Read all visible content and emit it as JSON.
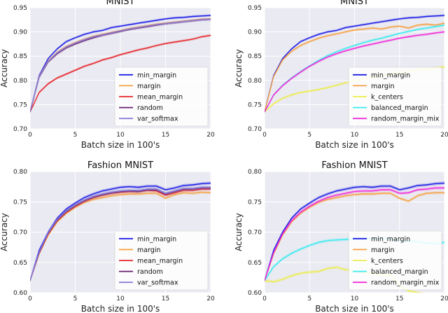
{
  "chart_data": [
    {
      "type": "line",
      "title": "MNIST",
      "xlabel": "Batch size in 100's",
      "ylabel": "Accuracy",
      "xlim": [
        0,
        20
      ],
      "ylim": [
        0.7,
        0.95
      ],
      "xticks": [
        "0",
        "5",
        "10",
        "15",
        "20"
      ],
      "yticks": [
        "0.70",
        "0.75",
        "0.80",
        "0.85",
        "0.90",
        "0.95"
      ],
      "grid": true,
      "legend_position": "bottom-right",
      "x": [
        0,
        1,
        2,
        3,
        4,
        5,
        6,
        7,
        8,
        9,
        10,
        11,
        12,
        13,
        14,
        15,
        16,
        17,
        18,
        19,
        20
      ],
      "series": [
        {
          "name": "min_margin",
          "color": "#1f1fe6",
          "values": [
            0.735,
            0.81,
            0.845,
            0.865,
            0.88,
            0.888,
            0.895,
            0.9,
            0.903,
            0.909,
            0.912,
            0.915,
            0.918,
            0.921,
            0.924,
            0.927,
            0.929,
            0.93,
            0.932,
            0.933,
            0.934
          ]
        },
        {
          "name": "margin",
          "color": "#f5a142",
          "values": [
            0.735,
            0.808,
            0.84,
            0.858,
            0.87,
            0.878,
            0.885,
            0.891,
            0.895,
            0.899,
            0.903,
            0.907,
            0.91,
            0.913,
            0.916,
            0.918,
            0.92,
            0.922,
            0.924,
            0.926,
            0.927
          ]
        },
        {
          "name": "mean_margin",
          "color": "#e6262a",
          "values": [
            0.735,
            0.775,
            0.793,
            0.805,
            0.813,
            0.821,
            0.829,
            0.835,
            0.842,
            0.847,
            0.853,
            0.858,
            0.863,
            0.867,
            0.872,
            0.876,
            0.879,
            0.882,
            0.885,
            0.89,
            0.893
          ]
        },
        {
          "name": "random",
          "color": "#6a1f6e",
          "values": [
            0.735,
            0.806,
            0.838,
            0.855,
            0.867,
            0.875,
            0.882,
            0.888,
            0.893,
            0.897,
            0.901,
            0.905,
            0.908,
            0.911,
            0.914,
            0.917,
            0.919,
            0.921,
            0.923,
            0.925,
            0.926
          ]
        },
        {
          "name": "var_softmax",
          "color": "#8a7fd6",
          "values": [
            0.735,
            0.807,
            0.839,
            0.857,
            0.869,
            0.877,
            0.884,
            0.89,
            0.894,
            0.898,
            0.902,
            0.906,
            0.909,
            0.912,
            0.915,
            0.917,
            0.919,
            0.921,
            0.923,
            0.925,
            0.926
          ]
        }
      ]
    },
    {
      "type": "line",
      "title": "MNIST",
      "xlabel": "Batch size in 100's",
      "ylabel": "Accuracy",
      "xlim": [
        0,
        20
      ],
      "ylim": [
        0.7,
        0.95
      ],
      "xticks": [
        "0",
        "5",
        "10",
        "15",
        "20"
      ],
      "yticks": [
        "0.70",
        "0.75",
        "0.80",
        "0.85",
        "0.90",
        "0.95"
      ],
      "grid": true,
      "legend_position": "bottom-right",
      "x": [
        0,
        1,
        2,
        3,
        4,
        5,
        6,
        7,
        8,
        9,
        10,
        11,
        12,
        13,
        14,
        15,
        16,
        17,
        18,
        19,
        20
      ],
      "series": [
        {
          "name": "min_margin",
          "color": "#1f1fe6",
          "values": [
            0.735,
            0.81,
            0.845,
            0.865,
            0.88,
            0.888,
            0.895,
            0.9,
            0.903,
            0.909,
            0.912,
            0.915,
            0.918,
            0.921,
            0.924,
            0.927,
            0.929,
            0.93,
            0.932,
            0.933,
            0.934
          ]
        },
        {
          "name": "margin",
          "color": "#f5a142",
          "values": [
            0.735,
            0.808,
            0.842,
            0.86,
            0.872,
            0.88,
            0.887,
            0.892,
            0.896,
            0.9,
            0.904,
            0.906,
            0.908,
            0.906,
            0.91,
            0.912,
            0.908,
            0.914,
            0.916,
            0.914,
            0.918
          ]
        },
        {
          "name": "k_centers",
          "color": "#eded4a",
          "values": [
            0.735,
            0.752,
            0.763,
            0.77,
            0.775,
            0.778,
            0.781,
            0.785,
            0.79,
            0.795,
            0.799,
            0.803,
            0.806,
            0.81,
            0.813,
            0.816,
            0.818,
            0.821,
            0.823,
            0.826,
            0.828
          ]
        },
        {
          "name": "balanced_margin",
          "color": "#38ecf0",
          "values": [
            0.735,
            0.77,
            0.79,
            0.805,
            0.818,
            0.83,
            0.841,
            0.851,
            0.859,
            0.866,
            0.872,
            0.878,
            0.883,
            0.887,
            0.892,
            0.897,
            0.901,
            0.905,
            0.908,
            0.911,
            0.914
          ]
        },
        {
          "name": "random_margin_mix",
          "color": "#f02cd8",
          "values": [
            0.735,
            0.77,
            0.789,
            0.804,
            0.817,
            0.829,
            0.839,
            0.848,
            0.855,
            0.861,
            0.866,
            0.871,
            0.875,
            0.879,
            0.883,
            0.887,
            0.89,
            0.893,
            0.895,
            0.898,
            0.9
          ]
        }
      ]
    },
    {
      "type": "line",
      "title": "Fashion MNIST",
      "xlabel": "Batch size in 100's",
      "ylabel": "Accuracy",
      "xlim": [
        0,
        20
      ],
      "ylim": [
        0.6,
        0.8
      ],
      "xticks": [
        "0",
        "5",
        "10",
        "15",
        "20"
      ],
      "yticks": [
        "0.60",
        "0.65",
        "0.70",
        "0.75",
        "0.80"
      ],
      "grid": true,
      "legend_position": "bottom-right",
      "x": [
        0,
        1,
        2,
        3,
        4,
        5,
        6,
        7,
        8,
        9,
        10,
        11,
        12,
        13,
        14,
        15,
        16,
        17,
        18,
        19,
        20
      ],
      "series": [
        {
          "name": "min_margin",
          "color": "#1f1fe6",
          "values": [
            0.62,
            0.67,
            0.7,
            0.723,
            0.738,
            0.748,
            0.757,
            0.763,
            0.768,
            0.771,
            0.774,
            0.775,
            0.774,
            0.776,
            0.776,
            0.77,
            0.773,
            0.777,
            0.778,
            0.78,
            0.781
          ]
        },
        {
          "name": "margin",
          "color": "#f5a142",
          "values": [
            0.62,
            0.664,
            0.695,
            0.717,
            0.731,
            0.741,
            0.749,
            0.754,
            0.757,
            0.76,
            0.762,
            0.763,
            0.763,
            0.764,
            0.764,
            0.756,
            0.762,
            0.765,
            0.764,
            0.766,
            0.765
          ]
        },
        {
          "name": "mean_margin",
          "color": "#e6262a",
          "values": [
            0.62,
            0.665,
            0.697,
            0.719,
            0.733,
            0.743,
            0.751,
            0.757,
            0.761,
            0.764,
            0.766,
            0.767,
            0.767,
            0.769,
            0.768,
            0.761,
            0.765,
            0.769,
            0.769,
            0.771,
            0.771
          ]
        },
        {
          "name": "random",
          "color": "#6a1f6e",
          "values": [
            0.62,
            0.666,
            0.698,
            0.72,
            0.734,
            0.744,
            0.752,
            0.758,
            0.762,
            0.765,
            0.767,
            0.768,
            0.767,
            0.77,
            0.77,
            0.763,
            0.767,
            0.771,
            0.771,
            0.773,
            0.773
          ]
        },
        {
          "name": "var_softmax",
          "color": "#8a7fd6",
          "values": [
            0.62,
            0.667,
            0.699,
            0.721,
            0.735,
            0.745,
            0.753,
            0.759,
            0.763,
            0.766,
            0.768,
            0.769,
            0.769,
            0.771,
            0.771,
            0.764,
            0.768,
            0.772,
            0.772,
            0.774,
            0.774
          ]
        }
      ]
    },
    {
      "type": "line",
      "title": "Fashion MNIST",
      "xlabel": "Batch size in 100's",
      "ylabel": "Accuracy",
      "xlim": [
        0,
        20
      ],
      "ylim": [
        0.6,
        0.8
      ],
      "xticks": [
        "0",
        "5",
        "10",
        "15",
        "20"
      ],
      "yticks": [
        "0.60",
        "0.65",
        "0.70",
        "0.75",
        "0.80"
      ],
      "grid": true,
      "legend_position": "bottom-right",
      "x": [
        0,
        1,
        2,
        3,
        4,
        5,
        6,
        7,
        8,
        9,
        10,
        11,
        12,
        13,
        14,
        15,
        16,
        17,
        18,
        19,
        20
      ],
      "series": [
        {
          "name": "min_margin",
          "color": "#1f1fe6",
          "values": [
            0.62,
            0.67,
            0.7,
            0.723,
            0.738,
            0.748,
            0.757,
            0.763,
            0.768,
            0.771,
            0.774,
            0.775,
            0.774,
            0.776,
            0.776,
            0.77,
            0.773,
            0.777,
            0.778,
            0.78,
            0.781
          ]
        },
        {
          "name": "margin",
          "color": "#f5a142",
          "values": [
            0.62,
            0.664,
            0.695,
            0.717,
            0.731,
            0.741,
            0.749,
            0.754,
            0.757,
            0.76,
            0.762,
            0.763,
            0.763,
            0.764,
            0.764,
            0.756,
            0.751,
            0.76,
            0.764,
            0.765,
            0.765
          ]
        },
        {
          "name": "k_centers",
          "color": "#eded4a",
          "values": [
            0.62,
            0.618,
            0.622,
            0.628,
            0.632,
            0.634,
            0.635,
            0.64,
            0.642,
            0.638,
            0.636,
            0.633,
            0.632,
            0.63,
            0.629,
            0.612,
            0.603,
            0.6,
            0.598,
            0.597,
            0.596
          ]
        },
        {
          "name": "balanced_margin",
          "color": "#38ecf0",
          "values": [
            0.62,
            0.643,
            0.656,
            0.665,
            0.672,
            0.678,
            0.683,
            0.686,
            0.687,
            0.688,
            0.689,
            0.69,
            0.689,
            0.69,
            0.688,
            0.686,
            0.685,
            0.684,
            0.682,
            0.681,
            0.683
          ]
        },
        {
          "name": "random_margin_mix",
          "color": "#f02cd8",
          "values": [
            0.62,
            0.666,
            0.697,
            0.719,
            0.733,
            0.743,
            0.751,
            0.757,
            0.761,
            0.764,
            0.767,
            0.768,
            0.768,
            0.77,
            0.77,
            0.764,
            0.765,
            0.77,
            0.771,
            0.773,
            0.773
          ]
        }
      ]
    }
  ]
}
